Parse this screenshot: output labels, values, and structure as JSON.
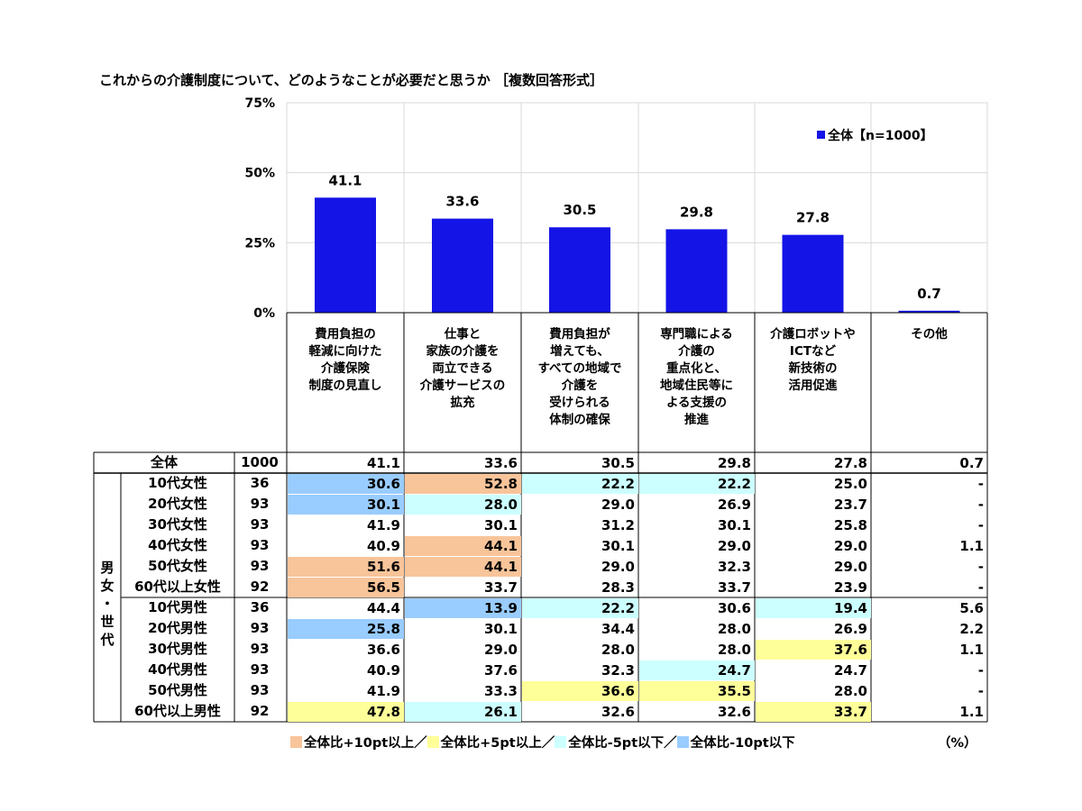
{
  "title": "これからの介護制度について、どのようなことが必要だと思うか ［複数回答形式］",
  "legend": {
    "label": "全体【n=1000】",
    "color": "#1414e6"
  },
  "chart_data": {
    "type": "bar",
    "categories": [
      "費用負担の軽減に向けた介護保険制度の見直し",
      "仕事と家族の介護を両立できる介護サービスの拡充",
      "費用負担が増えても、すべての地域で介護を受けられる体制の確保",
      "専門職による介護の重点化と、地域住民等による支援の推進",
      "介護ロボットやICTなど新技術の活用促進",
      "その他"
    ],
    "values": [
      41.1,
      33.6,
      30.5,
      29.8,
      27.8,
      0.7
    ],
    "value_labels": [
      "41.1",
      "33.6",
      "30.5",
      "29.8",
      "27.8",
      "0.7"
    ],
    "yticks": [
      "0%",
      "25%",
      "50%",
      "75%"
    ],
    "ylim": [
      0,
      75
    ],
    "series_name": "全体【n=1000】"
  },
  "headers": [
    [
      "費用負担の",
      "軽減に向けた",
      "介護保険",
      "制度の見直し"
    ],
    [
      "仕事と",
      "家族の介護を",
      "両立できる",
      "介護サービスの",
      "拡充"
    ],
    [
      "費用負担が",
      "増えても、",
      "すべての地域で",
      "介護を",
      "受けられる",
      "体制の確保"
    ],
    [
      "専門職による",
      "介護の",
      "重点化と、",
      "地域住民等に",
      "よる支援の",
      "推進"
    ],
    [
      "介護ロボットや",
      "ICTなど",
      "新技術の",
      "活用促進"
    ],
    [
      "その他"
    ]
  ],
  "group_label": [
    "男",
    "女",
    "・",
    "世",
    "代"
  ],
  "rows": [
    {
      "label": "全体",
      "n": "1000",
      "values": [
        "41.1",
        "33.6",
        "30.5",
        "29.8",
        "27.8",
        "0.7"
      ],
      "hl": [
        "",
        "",
        "",
        "",
        "",
        ""
      ]
    },
    {
      "label": "10代女性",
      "n": "36",
      "values": [
        "30.6",
        "52.8",
        "22.2",
        "22.2",
        "25.0",
        "-"
      ],
      "hl": [
        "m10",
        "p10",
        "m5",
        "m5",
        "",
        ""
      ]
    },
    {
      "label": "20代女性",
      "n": "93",
      "values": [
        "30.1",
        "28.0",
        "29.0",
        "26.9",
        "23.7",
        "-"
      ],
      "hl": [
        "m10",
        "m5",
        "",
        "",
        "",
        ""
      ]
    },
    {
      "label": "30代女性",
      "n": "93",
      "values": [
        "41.9",
        "30.1",
        "31.2",
        "30.1",
        "25.8",
        "-"
      ],
      "hl": [
        "",
        "",
        "",
        "",
        "",
        ""
      ]
    },
    {
      "label": "40代女性",
      "n": "93",
      "values": [
        "40.9",
        "44.1",
        "30.1",
        "29.0",
        "29.0",
        "1.1"
      ],
      "hl": [
        "",
        "p10",
        "",
        "",
        "",
        ""
      ]
    },
    {
      "label": "50代女性",
      "n": "93",
      "values": [
        "51.6",
        "44.1",
        "29.0",
        "32.3",
        "29.0",
        "-"
      ],
      "hl": [
        "p10",
        "p10",
        "",
        "",
        "",
        ""
      ]
    },
    {
      "label": "60代以上女性",
      "n": "92",
      "values": [
        "56.5",
        "33.7",
        "28.3",
        "33.7",
        "23.9",
        "-"
      ],
      "hl": [
        "p10",
        "",
        "",
        "",
        "",
        ""
      ]
    },
    {
      "label": "10代男性",
      "n": "36",
      "values": [
        "44.4",
        "13.9",
        "22.2",
        "30.6",
        "19.4",
        "5.6"
      ],
      "hl": [
        "",
        "m10",
        "m5",
        "",
        "m5",
        ""
      ]
    },
    {
      "label": "20代男性",
      "n": "93",
      "values": [
        "25.8",
        "30.1",
        "34.4",
        "28.0",
        "26.9",
        "2.2"
      ],
      "hl": [
        "m10",
        "",
        "",
        "",
        "",
        ""
      ]
    },
    {
      "label": "30代男性",
      "n": "93",
      "values": [
        "36.6",
        "29.0",
        "28.0",
        "28.0",
        "37.6",
        "1.1"
      ],
      "hl": [
        "",
        "",
        "",
        "",
        "p5",
        ""
      ]
    },
    {
      "label": "40代男性",
      "n": "93",
      "values": [
        "40.9",
        "37.6",
        "32.3",
        "24.7",
        "24.7",
        "-"
      ],
      "hl": [
        "",
        "",
        "",
        "m5",
        "",
        ""
      ]
    },
    {
      "label": "50代男性",
      "n": "93",
      "values": [
        "41.9",
        "33.3",
        "36.6",
        "35.5",
        "28.0",
        "-"
      ],
      "hl": [
        "",
        "",
        "p5",
        "p5",
        "",
        ""
      ]
    },
    {
      "label": "60代以上男性",
      "n": "92",
      "values": [
        "47.8",
        "26.1",
        "32.6",
        "32.6",
        "33.7",
        "1.1"
      ],
      "hl": [
        "p5",
        "m5",
        "",
        "",
        "p5",
        ""
      ]
    }
  ],
  "highlight_colors": {
    "p10": "#f8c49a",
    "p5": "#ffff99",
    "m5": "#ccffff",
    "m10": "#99ccff"
  },
  "footnote": {
    "items": [
      {
        "key": "p10",
        "label": "全体比+10pt以上／"
      },
      {
        "key": "p5",
        "label": "全体比+5pt以上／"
      },
      {
        "key": "m5",
        "label": "全体比-5pt以下／"
      },
      {
        "key": "m10",
        "label": "全体比-10pt以下"
      }
    ],
    "unit": "（%）"
  }
}
